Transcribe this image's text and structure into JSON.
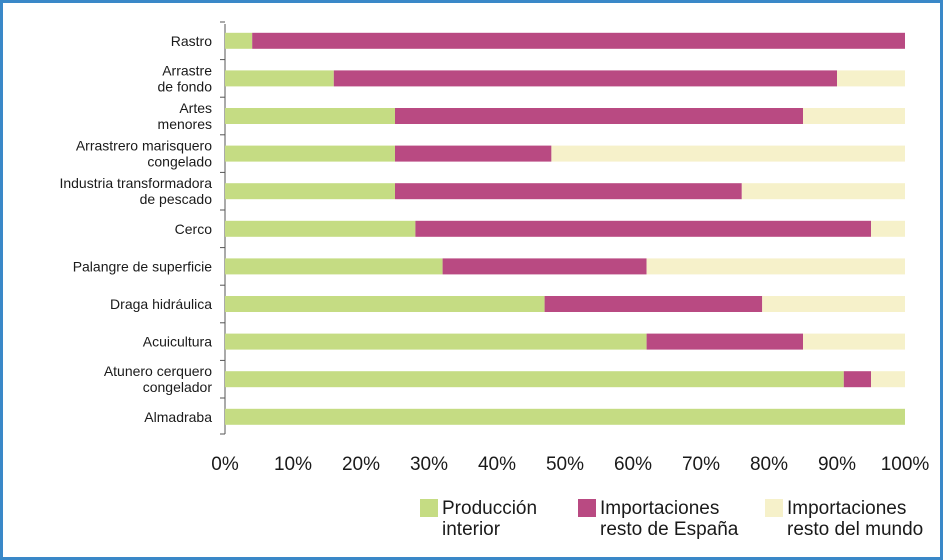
{
  "chart_data": {
    "type": "bar",
    "orientation": "horizontal",
    "stacked": true,
    "categories": [
      [
        "Rastro"
      ],
      [
        "Arrastre",
        "de fondo"
      ],
      [
        "Artes",
        "menores"
      ],
      [
        "Arrastrero marisquero",
        "congelado"
      ],
      [
        "Industria transformadora",
        "de pescado"
      ],
      [
        "Cerco"
      ],
      [
        "Palangre de superficie"
      ],
      [
        "Draga hidráulica"
      ],
      [
        "Acuicultura"
      ],
      [
        "Atunero cerquero",
        "congelador"
      ],
      [
        "Almadraba"
      ]
    ],
    "series": [
      {
        "name": [
          "Producción",
          "interior"
        ],
        "color": "#c5dc83",
        "values": [
          4,
          16,
          25,
          25,
          25,
          28,
          32,
          47,
          62,
          91,
          100
        ]
      },
      {
        "name": [
          "Importaciones",
          "resto de España"
        ],
        "color": "#b94a82",
        "values": [
          96,
          74,
          60,
          23,
          51,
          67,
          30,
          32,
          23,
          4,
          0
        ]
      },
      {
        "name": [
          "Importaciones",
          "resto del mundo"
        ],
        "color": "#f6f1ca",
        "values": [
          0,
          10,
          15,
          52,
          24,
          5,
          38,
          21,
          15,
          5,
          0
        ]
      }
    ],
    "x_ticks": [
      "0%",
      "10%",
      "20%",
      "30%",
      "40%",
      "50%",
      "60%",
      "70%",
      "80%",
      "90%",
      "100%"
    ],
    "xlim": [
      0,
      100
    ],
    "grid": false,
    "legend_position": "bottom-right"
  }
}
